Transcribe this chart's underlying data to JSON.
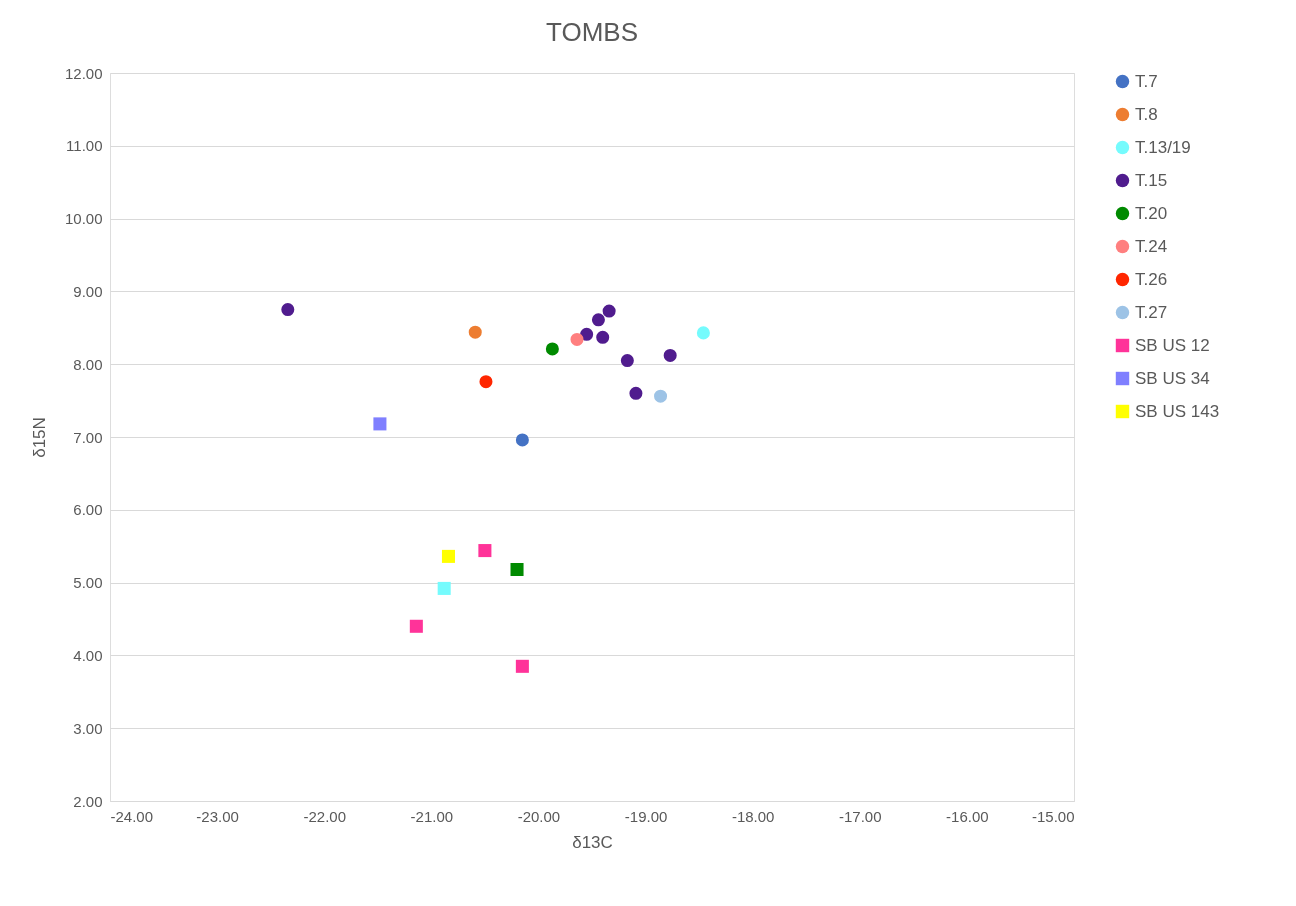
{
  "chart_data": {
    "type": "scatter",
    "title": "TOMBS",
    "xlabel": "δ13C",
    "ylabel": "δ15N",
    "xlim": [
      -24,
      -15
    ],
    "ylim": [
      2,
      12
    ],
    "xticks": [
      {
        "value": -24,
        "label": "-24.00"
      },
      {
        "value": -23,
        "label": "-23.00"
      },
      {
        "value": -22,
        "label": "-22.00"
      },
      {
        "value": -21,
        "label": "-21.00"
      },
      {
        "value": -20,
        "label": "-20.00"
      },
      {
        "value": -19,
        "label": "-19.00"
      },
      {
        "value": -18,
        "label": "-18.00"
      },
      {
        "value": -17,
        "label": "-17.00"
      },
      {
        "value": -16,
        "label": "-16.00"
      },
      {
        "value": -15,
        "label": "-15.00"
      }
    ],
    "yticks": [
      {
        "value": 2,
        "label": "2.00"
      },
      {
        "value": 3,
        "label": "3.00"
      },
      {
        "value": 4,
        "label": "4.00"
      },
      {
        "value": 5,
        "label": "5.00"
      },
      {
        "value": 6,
        "label": "6.00"
      },
      {
        "value": 7,
        "label": "7.00"
      },
      {
        "value": 8,
        "label": "8.00"
      },
      {
        "value": 9,
        "label": "9.00"
      },
      {
        "value": 10,
        "label": "10.00"
      },
      {
        "value": 11,
        "label": "11.00"
      },
      {
        "value": 12,
        "label": "12.00"
      }
    ],
    "grid": "y",
    "legend": "right",
    "series": [
      {
        "name": "T.7",
        "color": "#4472c4",
        "marker": "circle",
        "x": [
          -20.15
        ],
        "values": [
          6.96
        ]
      },
      {
        "name": "T.8",
        "color": "#ed7d31",
        "marker": "circle",
        "x": [
          -20.59
        ],
        "values": [
          8.44
        ]
      },
      {
        "name": "T.13/19",
        "color": "#75fbfd",
        "marker": "circle",
        "x": [
          -18.46
        ],
        "values": [
          8.43
        ]
      },
      {
        "name": "T.15",
        "color": "#501c8e",
        "marker": "circle",
        "x": [
          -22.34,
          -19.55,
          -19.44,
          -19.34,
          -19.4,
          -19.17,
          -18.77,
          -19.09
        ],
        "values": [
          8.75,
          8.41,
          8.61,
          8.73,
          8.37,
          8.05,
          8.12,
          7.6
        ]
      },
      {
        "name": "T.20",
        "color": "#008a00",
        "marker": "circle",
        "x": [
          -19.87
        ],
        "values": [
          8.21
        ]
      },
      {
        "name": "T.24",
        "color": "#ff7f7f",
        "marker": "circle",
        "x": [
          -19.64
        ],
        "values": [
          8.34
        ]
      },
      {
        "name": "T.26",
        "color": "#ff2600",
        "marker": "circle",
        "x": [
          -20.49
        ],
        "values": [
          7.76
        ]
      },
      {
        "name": "T.27",
        "color": "#9dc3e6",
        "marker": "circle",
        "x": [
          -18.86
        ],
        "values": [
          7.56
        ]
      },
      {
        "name": "SB US 12",
        "color": "#ff3399",
        "marker": "square",
        "x": [
          -20.5,
          -21.14,
          -20.15
        ],
        "values": [
          5.44,
          4.4,
          3.85
        ]
      },
      {
        "name": "SB US 34",
        "color": "#7f7fff",
        "marker": "square",
        "x": [
          -21.48
        ],
        "values": [
          7.18
        ]
      },
      {
        "name": "SB US 143",
        "color": "#ffff00",
        "marker": "square",
        "x": [
          -20.84
        ],
        "values": [
          5.36
        ]
      },
      {
        "color": "#75fbfd",
        "marker": "square",
        "x": [
          -20.88
        ],
        "values": [
          4.92
        ]
      },
      {
        "color": "#008a00",
        "marker": "square",
        "x": [
          -20.2
        ],
        "values": [
          5.18
        ]
      }
    ]
  }
}
